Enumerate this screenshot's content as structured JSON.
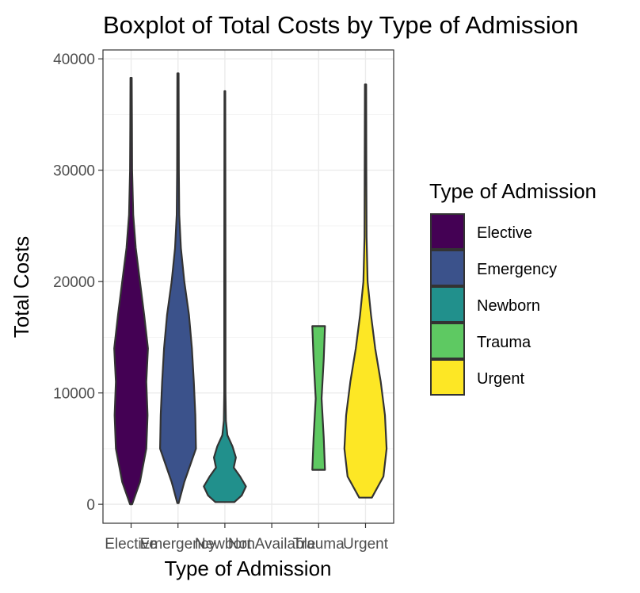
{
  "chart_data": {
    "type": "violin",
    "title": "Boxplot of Total Costs by Type of Admission",
    "xlabel": "Type of Admission",
    "ylabel": "Total Costs",
    "ylim": [
      -1700,
      40800
    ],
    "yticks": [
      0,
      10000,
      20000,
      30000,
      40000
    ],
    "categories": [
      "Elective",
      "Emergency",
      "Newborn",
      "Not Available",
      "Trauma",
      "Urgent"
    ],
    "grid": true,
    "legend": {
      "title": "Type of Admission",
      "position": "right",
      "entries": [
        "Elective",
        "Emergency",
        "Newborn",
        "Trauma",
        "Urgent"
      ]
    },
    "series": [
      {
        "category": "Elective",
        "color": "#440154",
        "min": 0,
        "max": 38300,
        "profile": [
          [
            0,
            0.05
          ],
          [
            2000,
            0.42
          ],
          [
            5000,
            0.72
          ],
          [
            8000,
            0.78
          ],
          [
            11000,
            0.72
          ],
          [
            14000,
            0.8
          ],
          [
            17000,
            0.62
          ],
          [
            20000,
            0.42
          ],
          [
            23000,
            0.22
          ],
          [
            26000,
            0.1
          ],
          [
            30000,
            0.05
          ],
          [
            34000,
            0.04
          ],
          [
            38300,
            0.03
          ]
        ]
      },
      {
        "category": "Emergency",
        "color": "#3b528b",
        "min": 100,
        "max": 38700,
        "profile": [
          [
            100,
            0.03
          ],
          [
            2000,
            0.3
          ],
          [
            5000,
            0.85
          ],
          [
            8000,
            0.82
          ],
          [
            11000,
            0.75
          ],
          [
            14000,
            0.66
          ],
          [
            17000,
            0.52
          ],
          [
            20000,
            0.3
          ],
          [
            23000,
            0.14
          ],
          [
            26000,
            0.06
          ],
          [
            30000,
            0.04
          ],
          [
            38700,
            0.03
          ]
        ]
      },
      {
        "category": "Newborn",
        "color": "#21908c",
        "min": 200,
        "max": 37100,
        "profile": [
          [
            200,
            0.45
          ],
          [
            800,
            0.8
          ],
          [
            1600,
            1.0
          ],
          [
            2500,
            0.72
          ],
          [
            3300,
            0.42
          ],
          [
            4200,
            0.52
          ],
          [
            5200,
            0.36
          ],
          [
            6200,
            0.12
          ],
          [
            7500,
            0.05
          ],
          [
            10000,
            0.03
          ],
          [
            20000,
            0.03
          ],
          [
            37100,
            0.02
          ]
        ]
      },
      {
        "category": "Trauma",
        "color": "#5ec962",
        "min": 3100,
        "max": 16000,
        "profile": [
          [
            3100,
            0.3
          ],
          [
            6000,
            0.24
          ],
          [
            9500,
            0.14
          ],
          [
            13000,
            0.24
          ],
          [
            16000,
            0.3
          ]
        ]
      },
      {
        "category": "Urgent",
        "color": "#fde725",
        "min": 600,
        "max": 37700,
        "profile": [
          [
            600,
            0.3
          ],
          [
            2500,
            0.85
          ],
          [
            5000,
            1.0
          ],
          [
            8000,
            0.92
          ],
          [
            11000,
            0.72
          ],
          [
            14000,
            0.46
          ],
          [
            17000,
            0.26
          ],
          [
            20000,
            0.1
          ],
          [
            24000,
            0.05
          ],
          [
            30000,
            0.04
          ],
          [
            37700,
            0.03
          ]
        ]
      }
    ]
  }
}
